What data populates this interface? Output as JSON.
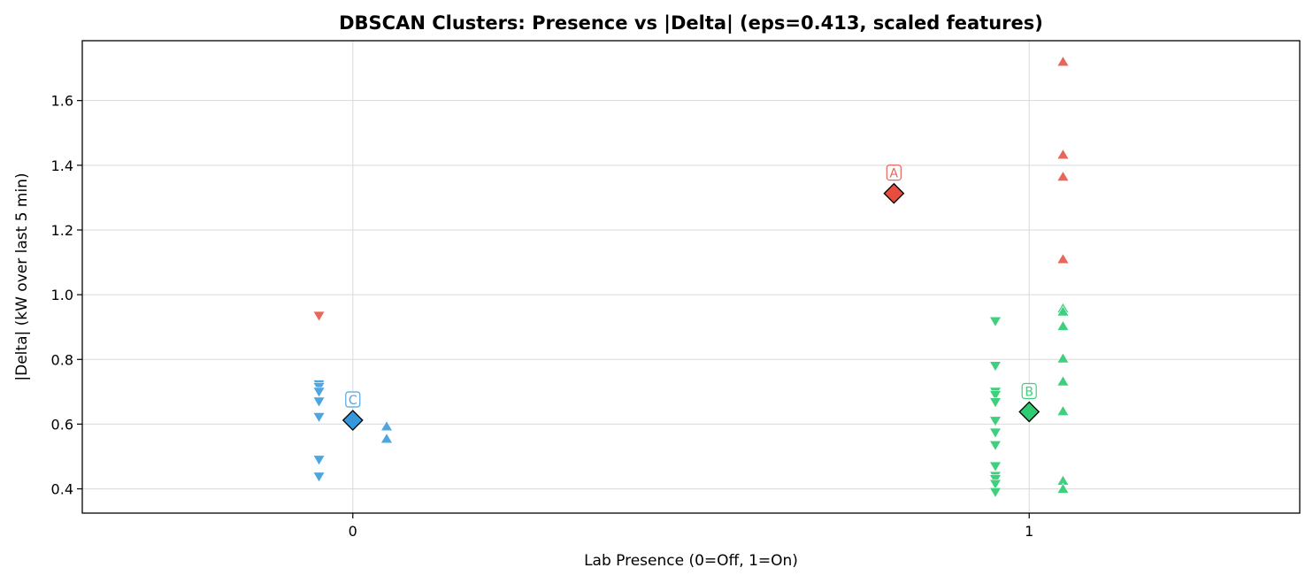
{
  "chart_data": {
    "type": "scatter",
    "title": "DBSCAN Clusters: Presence vs |Delta| (eps=0.413, scaled features)",
    "xlabel": "Lab Presence (0=Off, 1=On)",
    "ylabel": "|Delta| (kW over last 5 min)",
    "xlim": [
      -0.4,
      1.4
    ],
    "ylim": [
      0.325,
      1.785
    ],
    "xticks": [
      0,
      1
    ],
    "yticks": [
      0.4,
      0.6,
      0.8,
      1.0,
      1.2,
      1.4,
      1.6
    ],
    "grid": true,
    "colors": {
      "A": "#e8665a",
      "B": "#3fcf7f",
      "C": "#4ea6e0",
      "A_center": "#e74c3c",
      "B_center": "#2ecc71",
      "C_center": "#3498db"
    },
    "series": [
      {
        "cluster": "C",
        "marker": "triangle-down",
        "points": [
          [
            -0.05,
            0.723
          ],
          [
            -0.05,
            0.715
          ],
          [
            -0.05,
            0.7
          ],
          [
            -0.05,
            0.67
          ],
          [
            -0.05,
            0.622
          ],
          [
            -0.05,
            0.49
          ],
          [
            -0.05,
            0.438
          ]
        ]
      },
      {
        "cluster": "C",
        "marker": "triangle-up",
        "points": [
          [
            0.05,
            0.593
          ],
          [
            0.05,
            0.555
          ]
        ]
      },
      {
        "cluster": "A",
        "marker": "triangle-down",
        "points": [
          [
            -0.05,
            0.935
          ]
        ]
      },
      {
        "cluster": "A",
        "marker": "triangle-up",
        "points": [
          [
            1.05,
            1.72
          ],
          [
            1.05,
            1.433
          ],
          [
            1.05,
            1.365
          ],
          [
            1.05,
            1.11
          ]
        ]
      },
      {
        "cluster": "B",
        "marker": "triangle-down",
        "points": [
          [
            0.95,
            0.918
          ],
          [
            0.95,
            0.78
          ],
          [
            0.95,
            0.7
          ],
          [
            0.95,
            0.69
          ],
          [
            0.95,
            0.668
          ],
          [
            0.95,
            0.61
          ],
          [
            0.95,
            0.574
          ],
          [
            0.95,
            0.535
          ],
          [
            0.95,
            0.47
          ],
          [
            0.95,
            0.44
          ],
          [
            0.95,
            0.43
          ],
          [
            0.95,
            0.415
          ],
          [
            0.95,
            0.39
          ]
        ]
      },
      {
        "cluster": "B",
        "marker": "triangle-up",
        "points": [
          [
            1.05,
            0.958
          ],
          [
            1.05,
            0.948
          ],
          [
            1.05,
            0.903
          ],
          [
            1.05,
            0.803
          ],
          [
            1.05,
            0.732
          ],
          [
            1.05,
            0.64
          ],
          [
            1.05,
            0.425
          ],
          [
            1.05,
            0.4
          ]
        ]
      }
    ],
    "centroids": [
      {
        "label": "A",
        "x": 0.8,
        "y": 1.313
      },
      {
        "label": "B",
        "x": 1.0,
        "y": 0.638
      },
      {
        "label": "C",
        "x": 0.0,
        "y": 0.612
      }
    ]
  }
}
